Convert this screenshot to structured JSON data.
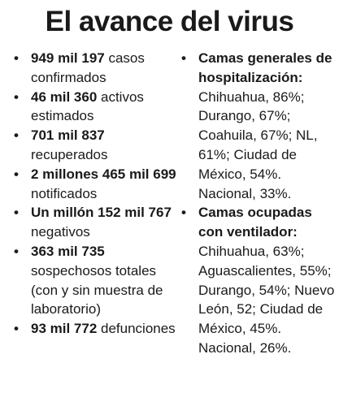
{
  "title": "El avance del virus",
  "bullet_char": "•",
  "left_items": [
    {
      "bold": "949 mil 197",
      "text": " casos confirmados"
    },
    {
      "bold": "46 mil 360",
      "text": " activos estimados"
    },
    {
      "bold": "701 mil 837",
      "text": " recuperados"
    },
    {
      "bold": "2 millones 465 mil 699",
      "text": " notificados"
    },
    {
      "bold": "Un millón 152 mil 767",
      "text": " negativos"
    },
    {
      "bold": "363 mil 735",
      "text": " sospechosos totales (con y sin muestra de laboratorio)"
    },
    {
      "bold": "93 mil 772",
      "text": " defunciones"
    }
  ],
  "right_items": [
    {
      "bold": "Camas generales de hospitalización:",
      "text": " Chihuahua, 86%; Durango, 67%; Coahuila, 67%; NL, 61%; Ciudad de México, 54%. Nacional, 33%."
    },
    {
      "bold": "Camas ocupadas con ventilador:",
      "text": " Chihuahua, 63%; Aguascalientes, 55%; Durango, 54%; Nuevo León, 52; Ciudad de México, 45%. Nacional, 26%."
    }
  ]
}
